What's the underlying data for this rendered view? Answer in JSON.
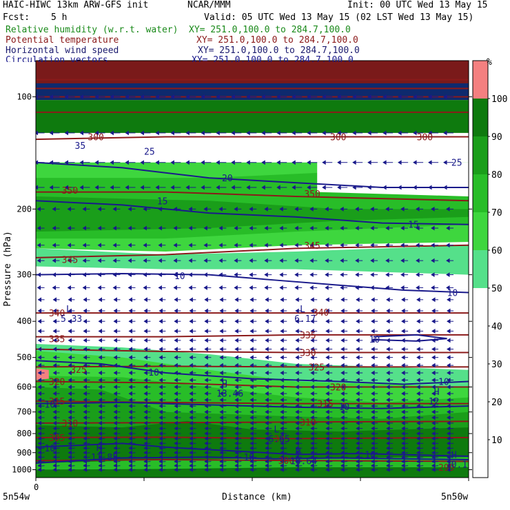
{
  "header": {
    "model": "HAIC-HIWC 13km ARW-GFS init",
    "org": "NCAR/MMM",
    "init": "Init: 00 UTC Wed 13 May 15",
    "fcst_label": "Fcst:",
    "fcst_value": "5 h",
    "valid": "Valid: 05 UTC Wed 13 May 15 (02 LST Wed 13 May 15)",
    "fields": [
      {
        "name": "Relative humidity (w.r.t. water)",
        "xy": "XY= 251.0,100.0 to 284.7,100.0",
        "color": "#1a8a1a"
      },
      {
        "name": "Potential temperature",
        "xy": "XY= 251.0,100.0 to 284.7,100.0",
        "color": "#8b1a1a"
      },
      {
        "name": "Horizontal wind speed",
        "xy": "XY= 251.0,100.0 to 284.7,100.0",
        "color": "#1a1a6e"
      },
      {
        "name": "Circulation vectors",
        "xy": "XY= 251.0,100.0 to 284.7,100.0",
        "color": "#1a1a8b"
      }
    ]
  },
  "chart_data": {
    "type": "heatmap",
    "ylabel": "Pressure (hPa)",
    "xlabel": "Distance (km)",
    "x_ticks": [
      "0"
    ],
    "x_endpoints": [
      "5n54w",
      "5n50w"
    ],
    "y_ticks": [
      100,
      200,
      300,
      400,
      500,
      600,
      700,
      800,
      900,
      1000
    ],
    "y_scale": "log",
    "ylim": [
      1050,
      80
    ],
    "colorbar": {
      "unit": "%",
      "levels": [
        10,
        20,
        30,
        40,
        50,
        60,
        70,
        80,
        90,
        100
      ],
      "colors": [
        "#ffffff",
        "#ffffff",
        "#ffffff",
        "#ffffff",
        "#ffffff",
        "#55e08a",
        "#3ed63e",
        "#28bd28",
        "#1a9e1a",
        "#0e7a0e",
        "#f48080"
      ]
    },
    "theta_labels": [
      {
        "text": "300",
        "x": 0.12,
        "p": 128
      },
      {
        "text": "300",
        "x": 0.68,
        "p": 128
      },
      {
        "text": "300",
        "x": 0.88,
        "p": 128
      },
      {
        "text": "350",
        "x": 0.06,
        "p": 178
      },
      {
        "text": "350",
        "x": 0.62,
        "p": 182
      },
      {
        "text": "345",
        "x": 0.06,
        "p": 273
      },
      {
        "text": "345",
        "x": 0.62,
        "p": 250
      },
      {
        "text": "340",
        "x": 0.03,
        "p": 380
      },
      {
        "text": "340",
        "x": 0.64,
        "p": 378
      },
      {
        "text": "335",
        "x": 0.03,
        "p": 445
      },
      {
        "text": "335",
        "x": 0.61,
        "p": 435
      },
      {
        "text": "330",
        "x": 0.61,
        "p": 485
      },
      {
        "text": "325",
        "x": 0.08,
        "p": 538
      },
      {
        "text": "325",
        "x": 0.63,
        "p": 530
      },
      {
        "text": "320",
        "x": 0.03,
        "p": 580
      },
      {
        "text": "320",
        "x": 0.68,
        "p": 600
      },
      {
        "text": "315",
        "x": 0.03,
        "p": 655
      },
      {
        "text": "315",
        "x": 0.65,
        "p": 665
      },
      {
        "text": "310",
        "x": 0.06,
        "p": 750
      },
      {
        "text": "310",
        "x": 0.61,
        "p": 745
      },
      {
        "text": "305",
        "x": 0.03,
        "p": 820
      },
      {
        "text": "305",
        "x": 0.55,
        "p": 825
      },
      {
        "text": "300",
        "x": 0.56,
        "p": 945
      },
      {
        "text": "299",
        "x": 0.93,
        "p": 985
      }
    ],
    "wind_labels": [
      {
        "text": "35",
        "x": 0.09,
        "p": 135
      },
      {
        "text": "25",
        "x": 0.25,
        "p": 140
      },
      {
        "text": "20",
        "x": 0.43,
        "p": 165
      },
      {
        "text": "15",
        "x": 0.28,
        "p": 190
      },
      {
        "text": "15",
        "x": 0.86,
        "p": 220
      },
      {
        "text": "25",
        "x": 0.96,
        "p": 150
      },
      {
        "text": "10",
        "x": 0.32,
        "p": 302
      },
      {
        "text": "10",
        "x": 0.95,
        "p": 335
      },
      {
        "text": "10",
        "x": 0.77,
        "p": 446
      },
      {
        "text": "10",
        "x": 0.26,
        "p": 548
      },
      {
        "text": "10",
        "x": 0.93,
        "p": 580
      },
      {
        "text": "10",
        "x": 0.02,
        "p": 667
      },
      {
        "text": "10",
        "x": 0.7,
        "p": 678
      },
      {
        "text": "10",
        "x": 0.02,
        "p": 875
      },
      {
        "text": "10",
        "x": 0.48,
        "p": 925
      },
      {
        "text": "10",
        "x": 0.76,
        "p": 910
      }
    ],
    "extrema": [
      {
        "mark": "L",
        "value": "5.33",
        "x": 0.07,
        "p": 378
      },
      {
        "mark": "L",
        "value": "6.17",
        "x": 0.61,
        "p": 378
      },
      {
        "mark": "H",
        "value": "13.46",
        "x": 0.43,
        "p": 600
      },
      {
        "mark": "H",
        "value": "12",
        "x": 0.92,
        "p": 630
      },
      {
        "mark": "L",
        "value": "6.65",
        "x": 0.55,
        "p": 795
      },
      {
        "mark": "H",
        "value": "11.85",
        "x": 0.14,
        "p": 890
      },
      {
        "mark": "H",
        "value": "10.64",
        "x": 0.6,
        "p": 910
      },
      {
        "mark": "H",
        "value": "10.1",
        "x": 0.96,
        "p": 930
      }
    ]
  },
  "colors": {
    "rh_text": "#1a8a1a",
    "theta": "#8b1a1a",
    "wind": "#1a1a8b",
    "vectors": "#1a1a8b"
  }
}
